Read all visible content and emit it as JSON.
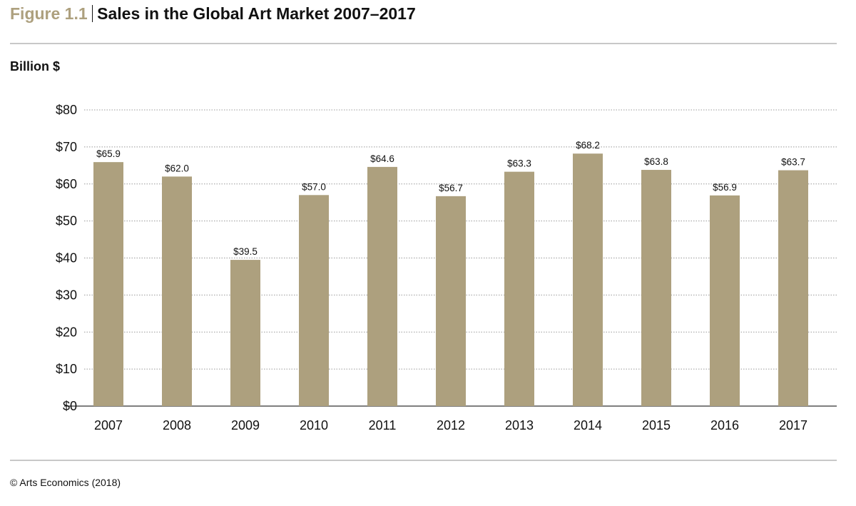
{
  "header": {
    "figure_label": "Figure 1.1",
    "title": "Sales in the Global Art Market 2007–2017"
  },
  "footer": {
    "source": "© Arts Economics (2018)"
  },
  "chart_data": {
    "type": "bar",
    "title": "Sales in the Global Art Market 2007–2017",
    "ylabel": "Billion $",
    "xlabel": "",
    "categories": [
      "2007",
      "2008",
      "2009",
      "2010",
      "2011",
      "2012",
      "2013",
      "2014",
      "2015",
      "2016",
      "2017"
    ],
    "values": [
      65.9,
      62.0,
      39.5,
      57.0,
      64.6,
      56.7,
      63.3,
      68.2,
      63.8,
      56.9,
      63.7
    ],
    "data_labels": [
      "$65.9",
      "$62.0",
      "$39.5",
      "$57.0",
      "$64.6",
      "$56.7",
      "$63.3",
      "$68.2",
      "$63.8",
      "$56.9",
      "$63.7"
    ],
    "ylim": [
      0,
      80
    ],
    "yticks": [
      0,
      10,
      20,
      30,
      40,
      50,
      60,
      70,
      80
    ],
    "ytick_labels": [
      "$0",
      "$10",
      "$20",
      "$30",
      "$40",
      "$50",
      "$60",
      "$70",
      "$80"
    ],
    "grid": "horizontal dotted",
    "legend": "none",
    "bar_color": "#ada07e",
    "accent_color": "#ada07e"
  }
}
